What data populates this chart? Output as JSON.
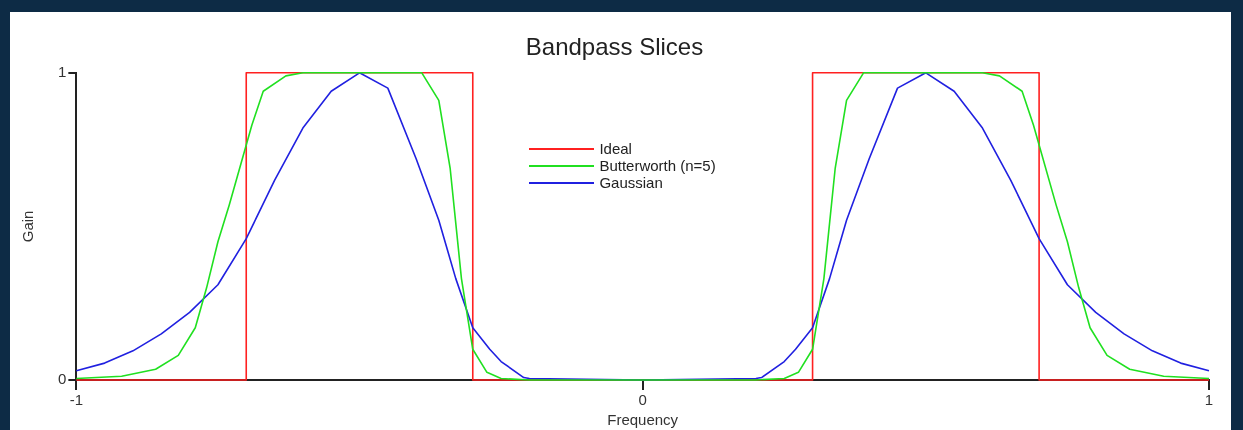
{
  "chart_data": {
    "type": "line",
    "title": "Bandpass Slices",
    "xlabel": "Frequency",
    "ylabel": "Gain",
    "xlim": [
      -1,
      1
    ],
    "xticks": [
      -1,
      0,
      1
    ],
    "ylim": [
      0,
      1
    ],
    "yticks": [
      0,
      1
    ],
    "grid": false,
    "legend": "top",
    "marker": "none",
    "line_style": "solid",
    "series": [
      {
        "name": "Ideal",
        "color": "#ff2020",
        "x": [
          -1,
          -0.7,
          -0.7,
          -0.3,
          -0.3,
          0.3,
          0.3,
          0.7,
          0.7,
          1
        ],
        "values": [
          0,
          0,
          1,
          1,
          0,
          0,
          1,
          1,
          0,
          0
        ]
      },
      {
        "name": "Butterworth (n=5)",
        "color": "#20e020",
        "x": [
          -1,
          -0.92,
          -0.86,
          -0.82,
          -0.79,
          -0.77,
          -0.75,
          -0.73,
          -0.69,
          -0.67,
          -0.63,
          -0.6,
          -0.39,
          -0.36,
          -0.34,
          -0.32,
          -0.3,
          -0.275,
          -0.25,
          -0.2,
          0.2,
          0.25,
          0.275,
          0.3,
          0.32,
          0.34,
          0.36,
          0.39,
          0.6,
          0.63,
          0.67,
          0.69,
          0.73,
          0.75,
          0.77,
          0.79,
          0.82,
          0.86,
          0.92,
          1
        ],
        "values": [
          0.005,
          0.012,
          0.035,
          0.08,
          0.17,
          0.3,
          0.45,
          0.57,
          0.83,
          0.94,
          0.99,
          1,
          1,
          0.91,
          0.69,
          0.33,
          0.1,
          0.025,
          0.005,
          0,
          0,
          0.005,
          0.025,
          0.1,
          0.33,
          0.69,
          0.91,
          1,
          1,
          0.99,
          0.94,
          0.83,
          0.57,
          0.45,
          0.3,
          0.17,
          0.08,
          0.035,
          0.012,
          0.005
        ]
      },
      {
        "name": "Gaussian",
        "color": "#2020e0",
        "x": [
          -1,
          -0.95,
          -0.9,
          -0.85,
          -0.8,
          -0.75,
          -0.7,
          -0.65,
          -0.6,
          -0.55,
          -0.5,
          -0.45,
          -0.4,
          -0.36,
          -0.33,
          -0.3,
          -0.27,
          -0.25,
          -0.21,
          -0.2,
          0,
          0.2,
          0.21,
          0.25,
          0.27,
          0.3,
          0.33,
          0.36,
          0.4,
          0.45,
          0.5,
          0.55,
          0.6,
          0.65,
          0.7,
          0.75,
          0.8,
          0.85,
          0.9,
          0.95,
          1
        ],
        "values": [
          0.03,
          0.055,
          0.095,
          0.15,
          0.22,
          0.31,
          0.46,
          0.65,
          0.82,
          0.94,
          1,
          0.95,
          0.72,
          0.52,
          0.33,
          0.17,
          0.1,
          0.06,
          0.008,
          0.005,
          0,
          0.005,
          0.008,
          0.06,
          0.1,
          0.17,
          0.33,
          0.52,
          0.72,
          0.95,
          1,
          0.94,
          0.82,
          0.65,
          0.46,
          0.31,
          0.22,
          0.15,
          0.095,
          0.055,
          0.03
        ]
      }
    ]
  }
}
